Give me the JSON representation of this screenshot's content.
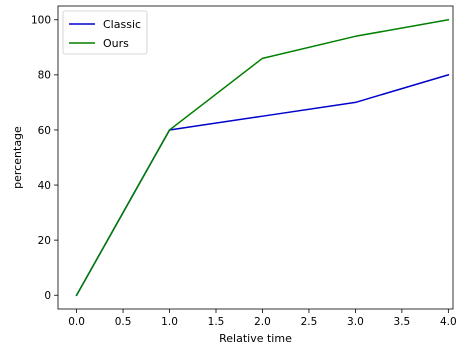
{
  "chart_data": {
    "type": "line",
    "title": "",
    "xlabel": "Relative time",
    "ylabel": "percentage",
    "xlim": [
      -0.2,
      4.05
    ],
    "ylim": [
      -5,
      105
    ],
    "xticks": [
      0.0,
      0.5,
      1.0,
      1.5,
      2.0,
      2.5,
      3.0,
      3.5,
      4.0
    ],
    "xtick_labels": [
      "0.0",
      "0.5",
      "1.0",
      "1.5",
      "2.0",
      "2.5",
      "3.0",
      "3.5",
      "4.0"
    ],
    "yticks": [
      0,
      20,
      40,
      60,
      80,
      100
    ],
    "ytick_labels": [
      "0",
      "20",
      "40",
      "60",
      "80",
      "100"
    ],
    "grid": false,
    "legend_position": "top-left",
    "x": [
      0,
      1,
      2,
      3,
      4
    ],
    "series": [
      {
        "name": "Classic",
        "color": "#0000cc",
        "values": [
          0,
          60,
          65,
          70,
          80
        ]
      },
      {
        "name": "Ours",
        "color": "#008000",
        "values": [
          0,
          60,
          86,
          94,
          100
        ]
      }
    ]
  }
}
